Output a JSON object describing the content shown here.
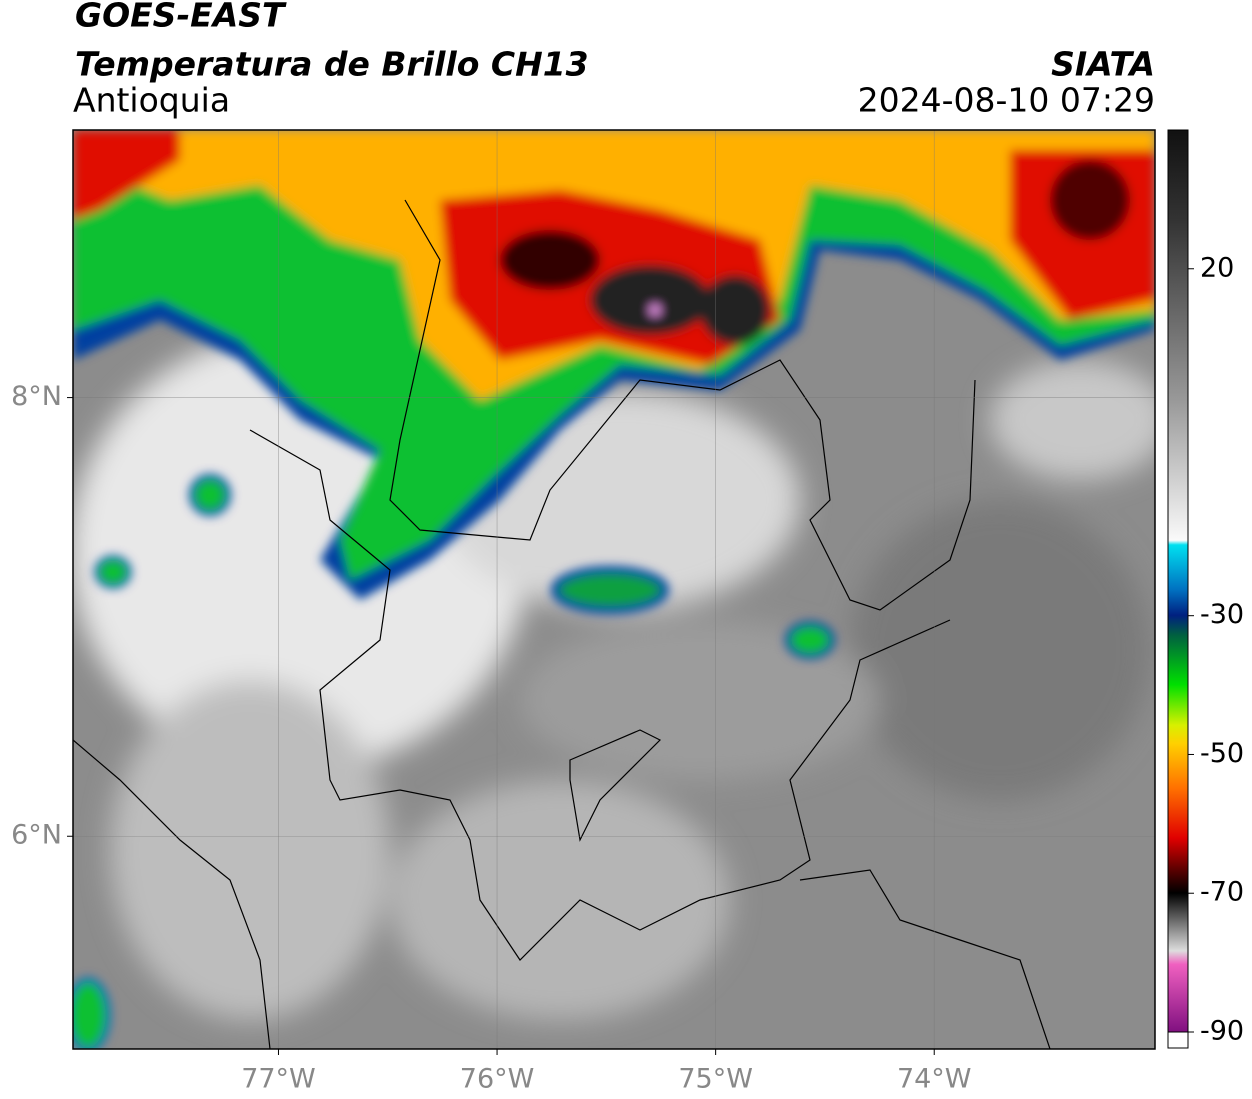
{
  "header": {
    "title": "GOES-EAST",
    "subtitle": "Temperatura de Brillo CH13",
    "region": "Antioquia",
    "source": "SIATA",
    "datetime": "2024-08-10 07:29"
  },
  "map": {
    "lonlim": [
      -77.94,
      -72.99
    ],
    "latlim": [
      5.03,
      9.22
    ],
    "lon_ticks": [
      {
        "value": -77,
        "label": "77°W"
      },
      {
        "value": -76,
        "label": "76°W"
      },
      {
        "value": -75,
        "label": "75°W"
      },
      {
        "value": -74,
        "label": "74°W"
      }
    ],
    "lat_ticks": [
      {
        "value": 8,
        "label": "8°N"
      },
      {
        "value": 6,
        "label": "6°N"
      }
    ]
  },
  "colorbar": {
    "lim": [
      -90,
      40
    ],
    "ticks": [
      20,
      -30,
      -50,
      -70,
      -90
    ]
  }
}
